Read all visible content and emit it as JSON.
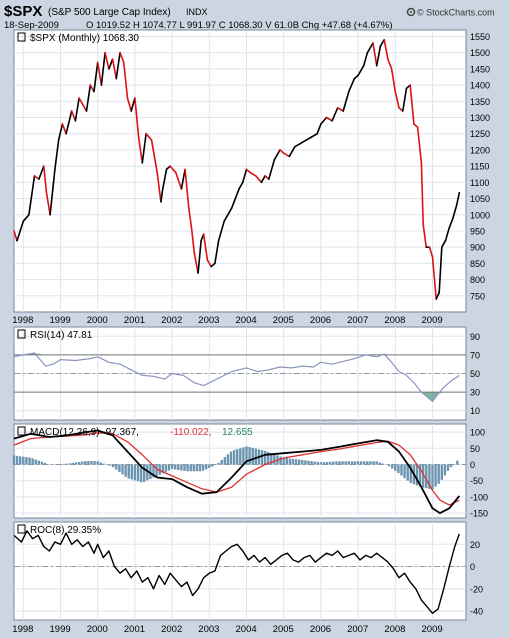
{
  "header": {
    "symbol": "$SPX",
    "name": "(S&P 500 Large Cap Index)",
    "exchange": "INDX",
    "date": "18-Sep-2009",
    "ohlc": "O 1019.52  H 1074.77  L 991.97  C 1068.30  V 61.0B  Chg +47.68 (+4.67%)",
    "credit": "© StockCharts.com",
    "credit_icon": "gear-icon"
  },
  "colors": {
    "up": "#000000",
    "down": "#dd1111",
    "rsi_line": "#8a95c0",
    "rsi_fill": "#5fa08a",
    "macd_signal": "#dd3333",
    "macd_hist": "#6a94b0",
    "panel_bg": "#ffffff",
    "frame_bg": "#ccd6e3",
    "grid": "#dfe5ef",
    "accent_green": "#2a8060"
  },
  "chart_data": [
    {
      "type": "line",
      "label": "$SPX (Monthly) 1068.30",
      "x": [
        1997.75,
        1997.83,
        1998.0,
        1998.15,
        1998.3,
        1998.42,
        1998.55,
        1998.62,
        1998.72,
        1998.85,
        1998.95,
        1999.05,
        1999.15,
        1999.3,
        1999.4,
        1999.5,
        1999.6,
        1999.7,
        1999.8,
        1999.9,
        2000.0,
        2000.1,
        2000.2,
        2000.3,
        2000.4,
        2000.5,
        2000.6,
        2000.7,
        2000.8,
        2000.9,
        2001.0,
        2001.1,
        2001.2,
        2001.3,
        2001.45,
        2001.6,
        2001.7,
        2001.75,
        2001.85,
        2001.95,
        2002.1,
        2002.25,
        2002.35,
        2002.45,
        2002.52,
        2002.6,
        2002.7,
        2002.78,
        2002.85,
        2002.95,
        2003.05,
        2003.15,
        2003.25,
        2003.4,
        2003.6,
        2003.8,
        2003.9,
        2004.0,
        2004.1,
        2004.25,
        2004.4,
        2004.5,
        2004.6,
        2004.75,
        2004.9,
        2005.0,
        2005.15,
        2005.3,
        2005.45,
        2005.6,
        2005.75,
        2005.9,
        2006.0,
        2006.15,
        2006.3,
        2006.45,
        2006.6,
        2006.75,
        2006.9,
        2007.0,
        2007.15,
        2007.25,
        2007.4,
        2007.5,
        2007.6,
        2007.7,
        2007.8,
        2007.9,
        2008.0,
        2008.1,
        2008.2,
        2008.3,
        2008.4,
        2008.5,
        2008.6,
        2008.7,
        2008.75,
        2008.83,
        2008.92,
        2009.0,
        2009.1,
        2009.18,
        2009.25,
        2009.35,
        2009.45,
        2009.55,
        2009.65,
        2009.72
      ],
      "values": [
        950,
        920,
        980,
        1000,
        1120,
        1110,
        1150,
        1070,
        1000,
        1140,
        1230,
        1280,
        1250,
        1320,
        1290,
        1360,
        1340,
        1320,
        1400,
        1380,
        1470,
        1400,
        1500,
        1450,
        1480,
        1420,
        1500,
        1470,
        1360,
        1320,
        1360,
        1240,
        1160,
        1250,
        1230,
        1130,
        1040,
        1080,
        1140,
        1150,
        1130,
        1080,
        1140,
        1020,
        960,
        880,
        820,
        920,
        940,
        860,
        840,
        850,
        920,
        980,
        1020,
        1080,
        1100,
        1140,
        1130,
        1120,
        1100,
        1120,
        1110,
        1170,
        1200,
        1190,
        1180,
        1210,
        1220,
        1230,
        1240,
        1250,
        1280,
        1300,
        1290,
        1330,
        1320,
        1380,
        1420,
        1430,
        1460,
        1500,
        1530,
        1460,
        1520,
        1540,
        1480,
        1450,
        1380,
        1330,
        1320,
        1390,
        1400,
        1280,
        1270,
        1160,
        970,
        900,
        900,
        870,
        740,
        760,
        900,
        920,
        960,
        990,
        1030,
        1068
      ],
      "ylim": [
        700,
        1570
      ],
      "yticks": [
        750,
        800,
        850,
        900,
        950,
        1000,
        1050,
        1100,
        1150,
        1200,
        1250,
        1300,
        1350,
        1400,
        1450,
        1500,
        1550
      ],
      "xticks": [
        "1998",
        "1999",
        "2000",
        "2001",
        "2002",
        "2003",
        "2004",
        "2005",
        "2006",
        "2007",
        "2008",
        "2009"
      ]
    },
    {
      "type": "line",
      "label": "RSI(14) 47.81",
      "x": [
        1997.75,
        1998.0,
        1998.3,
        1998.6,
        1998.8,
        1999.0,
        1999.4,
        1999.8,
        2000.0,
        2000.3,
        2000.6,
        2000.9,
        2001.2,
        2001.5,
        2001.8,
        2002.0,
        2002.3,
        2002.6,
        2002.85,
        2003.0,
        2003.3,
        2003.6,
        2004.0,
        2004.3,
        2004.6,
        2004.9,
        2005.2,
        2005.5,
        2005.8,
        2006.0,
        2006.3,
        2006.6,
        2006.9,
        2007.2,
        2007.5,
        2007.7,
        2007.9,
        2008.1,
        2008.3,
        2008.5,
        2008.7,
        2008.85,
        2009.0,
        2009.15,
        2009.3,
        2009.5,
        2009.72
      ],
      "values": [
        68,
        70,
        72,
        58,
        60,
        65,
        64,
        66,
        68,
        62,
        60,
        54,
        48,
        47,
        44,
        50,
        48,
        40,
        37,
        40,
        46,
        52,
        56,
        52,
        54,
        57,
        56,
        58,
        57,
        62,
        60,
        63,
        66,
        70,
        68,
        71,
        62,
        52,
        48,
        40,
        30,
        25,
        20,
        28,
        35,
        42,
        47.8
      ],
      "ylim": [
        0,
        100
      ],
      "yticks": [
        10,
        30,
        50,
        70,
        90
      ],
      "levels": [
        30,
        70
      ]
    },
    {
      "type": "line",
      "label": "MACD(12,26,9)",
      "macd_value": "-97.367",
      "signal_value": "-110.022",
      "hist_value": "12.655",
      "x": [
        1997.75,
        1998.2,
        1998.7,
        1999.2,
        1999.7,
        2000.0,
        2000.4,
        2000.8,
        2001.2,
        2001.6,
        2002.0,
        2002.4,
        2002.8,
        2003.2,
        2003.6,
        2004.0,
        2004.5,
        2005.0,
        2005.5,
        2006.0,
        2006.5,
        2007.0,
        2007.5,
        2007.8,
        2008.1,
        2008.4,
        2008.7,
        2009.0,
        2009.2,
        2009.45,
        2009.72
      ],
      "macd": [
        80,
        95,
        85,
        90,
        100,
        105,
        90,
        40,
        -10,
        -40,
        -45,
        -70,
        -90,
        -85,
        -40,
        10,
        30,
        35,
        40,
        45,
        55,
        65,
        75,
        70,
        40,
        -10,
        -70,
        -135,
        -150,
        -135,
        -97
      ],
      "signal": [
        60,
        80,
        85,
        88,
        92,
        98,
        95,
        70,
        30,
        -15,
        -35,
        -55,
        -75,
        -85,
        -70,
        -30,
        0,
        20,
        30,
        40,
        48,
        58,
        68,
        72,
        60,
        30,
        -20,
        -80,
        -110,
        -125,
        -110
      ],
      "ylim": [
        -165,
        125
      ],
      "yticks": [
        -150,
        -100,
        -50,
        0,
        50,
        100
      ]
    },
    {
      "type": "line",
      "label": "ROC(8) 29.35%",
      "x": [
        1997.75,
        1997.95,
        1998.1,
        1998.25,
        1998.4,
        1998.55,
        1998.7,
        1998.85,
        1999.0,
        1999.15,
        1999.3,
        1999.45,
        1999.6,
        1999.75,
        1999.9,
        2000.0,
        2000.15,
        2000.3,
        2000.45,
        2000.6,
        2000.75,
        2000.9,
        2001.05,
        2001.2,
        2001.35,
        2001.5,
        2001.65,
        2001.8,
        2001.95,
        2002.1,
        2002.25,
        2002.4,
        2002.55,
        2002.7,
        2002.85,
        2003.0,
        2003.15,
        2003.3,
        2003.45,
        2003.6,
        2003.75,
        2003.9,
        2004.05,
        2004.2,
        2004.35,
        2004.5,
        2004.65,
        2004.8,
        2004.95,
        2005.1,
        2005.25,
        2005.4,
        2005.55,
        2005.7,
        2005.85,
        2006.0,
        2006.15,
        2006.3,
        2006.45,
        2006.6,
        2006.75,
        2006.9,
        2007.05,
        2007.2,
        2007.35,
        2007.5,
        2007.65,
        2007.8,
        2007.95,
        2008.1,
        2008.25,
        2008.4,
        2008.55,
        2008.7,
        2008.85,
        2009.0,
        2009.15,
        2009.3,
        2009.45,
        2009.6,
        2009.72
      ],
      "values": [
        28,
        22,
        32,
        25,
        28,
        18,
        14,
        22,
        20,
        30,
        20,
        24,
        18,
        22,
        12,
        20,
        8,
        14,
        0,
        -6,
        -2,
        -10,
        -4,
        -14,
        -10,
        -20,
        -8,
        -16,
        -6,
        -12,
        -18,
        -14,
        -26,
        -20,
        -10,
        -6,
        -4,
        10,
        14,
        18,
        20,
        14,
        6,
        10,
        4,
        8,
        2,
        6,
        10,
        12,
        6,
        4,
        8,
        10,
        4,
        8,
        12,
        10,
        14,
        8,
        10,
        12,
        6,
        10,
        8,
        12,
        8,
        4,
        -2,
        -10,
        -6,
        -14,
        -20,
        -30,
        -36,
        -42,
        -38,
        -20,
        0,
        18,
        29.35
      ],
      "ylim": [
        -48,
        40
      ],
      "yticks": [
        -40,
        -20,
        0,
        20
      ]
    }
  ]
}
